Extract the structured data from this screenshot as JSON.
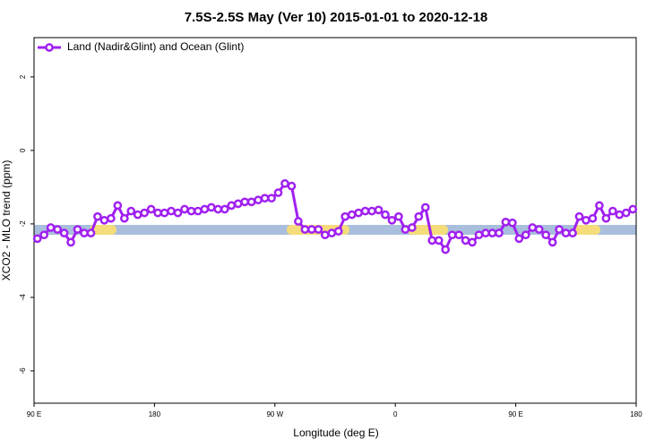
{
  "chart_data": {
    "type": "line",
    "title": "7.5S-2.5S May (Ver 10)   2015-01-01 to 2020-12-18",
    "x_label": "Longitude (deg E)",
    "y_label": "XCO2 - MLO trend (ppm)",
    "xlim": [
      90,
      540
    ],
    "ylim": [
      -6.88,
      3.07
    ],
    "xticks": [
      {
        "value": 90,
        "label": "90 E"
      },
      180,
      {
        "value": 270,
        "label": "90 W"
      },
      {
        "value": 360,
        "label": "0"
      },
      {
        "value": 450,
        "label": "90 E"
      },
      {
        "value": 540,
        "label": "180"
      }
    ],
    "yticks": [
      2,
      0,
      -2,
      -4,
      -6
    ],
    "legend": "top-left",
    "x": [
      92.5,
      97.5,
      102.5,
      107.5,
      112.5,
      117.5,
      122.5,
      127.5,
      132.5,
      137.5,
      142.5,
      147.5,
      152.5,
      157.5,
      162.5,
      167.5,
      172.5,
      177.5,
      182.5,
      187.5,
      192.5,
      197.5,
      202.5,
      207.5,
      212.5,
      217.5,
      222.5,
      227.5,
      232.5,
      237.5,
      242.5,
      247.5,
      252.5,
      257.5,
      262.5,
      267.5,
      272.5,
      277.5,
      282.5,
      287.5,
      292.5,
      297.5,
      302.5,
      307.5,
      312.5,
      317.5,
      322.5,
      327.5,
      332.5,
      337.5,
      342.5,
      347.5,
      352.5,
      357.5,
      362.5,
      367.5,
      372.5,
      377.5,
      382.5,
      387.5,
      392.5,
      397.5,
      402.5,
      407.5,
      412.5,
      417.5,
      422.5,
      427.5,
      432.5,
      437.5,
      442.5,
      447.5,
      452.5,
      457.5,
      462.5,
      467.5,
      472.5,
      477.5,
      482.5,
      487.5,
      492.5,
      497.5,
      502.5,
      507.5,
      512.5,
      517.5,
      522.5,
      527.5,
      532.5,
      537.5
    ],
    "series": [
      {
        "name": "Land (Nadir&Glint) and Ocean (Glint)",
        "color": "#a020f0",
        "values": [
          -2.4,
          -2.3,
          -2.1,
          -2.15,
          -2.25,
          -2.5,
          -2.15,
          -2.25,
          -2.25,
          -1.8,
          -1.9,
          -1.85,
          -1.5,
          -1.85,
          -1.65,
          -1.75,
          -1.7,
          -1.6,
          -1.7,
          -1.7,
          -1.65,
          -1.7,
          -1.6,
          -1.65,
          -1.65,
          -1.6,
          -1.55,
          -1.6,
          -1.6,
          -1.5,
          -1.45,
          -1.4,
          -1.4,
          -1.35,
          -1.3,
          -1.3,
          -1.15,
          -0.9,
          -0.97,
          -1.93,
          -2.15,
          -2.15,
          -2.15,
          -2.3,
          -2.25,
          -2.2,
          -1.8,
          -1.75,
          -1.7,
          -1.65,
          -1.65,
          -1.62,
          -1.75,
          -1.9,
          -1.8,
          -2.15,
          -2.1,
          -1.8,
          -1.55,
          -2.45,
          -2.45,
          -2.7,
          -2.3,
          -2.3,
          -2.45,
          -2.5,
          -2.3,
          -2.25,
          -2.25,
          -2.25,
          -1.95,
          -1.97,
          -2.4,
          -2.3,
          -2.1,
          -2.15,
          -2.3,
          -2.5,
          -2.15,
          -2.25,
          -2.25,
          -1.8,
          -1.9,
          -1.85,
          -1.5,
          -1.85,
          -1.65,
          -1.75,
          -1.7,
          -1.6
        ]
      }
    ]
  }
}
